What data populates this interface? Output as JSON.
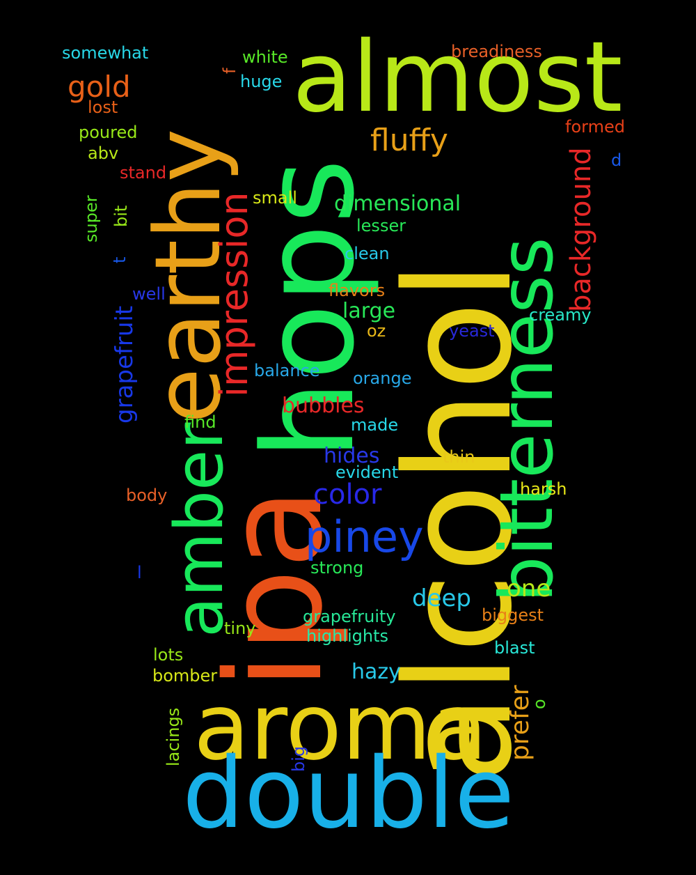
{
  "background": "#000000",
  "words": [
    {
      "text": "alcohol",
      "color": "#e8d016"
    },
    {
      "text": "ipa",
      "color": "#e85018"
    },
    {
      "text": "hops",
      "color": "#18e85a"
    },
    {
      "text": "almost",
      "color": "#b8e818"
    },
    {
      "text": "earthy",
      "color": "#e8a018"
    },
    {
      "text": "aroma",
      "color": "#e8d016"
    },
    {
      "text": "double",
      "color": "#18b0e8"
    },
    {
      "text": "bitterness",
      "color": "#18e85a"
    },
    {
      "text": "amber",
      "color": "#18e85a"
    },
    {
      "text": "piney",
      "color": "#1848e8"
    },
    {
      "text": "impression",
      "color": "#e82828"
    },
    {
      "text": "background",
      "color": "#e82828"
    },
    {
      "text": "fluffy",
      "color": "#e8a018"
    },
    {
      "text": "gold",
      "color": "#e86018"
    },
    {
      "text": "grapefruit",
      "color": "#1838e8"
    },
    {
      "text": "color",
      "color": "#2828e8"
    },
    {
      "text": "dimensional",
      "color": "#28e858"
    },
    {
      "text": "prefer",
      "color": "#e8a018"
    },
    {
      "text": "deep",
      "color": "#28c8e8"
    },
    {
      "text": "one",
      "color": "#b8e818"
    },
    {
      "text": "bubbles",
      "color": "#e82828"
    },
    {
      "text": "hides",
      "color": "#2838e8"
    },
    {
      "text": "large",
      "color": "#28e858"
    },
    {
      "text": "hazy",
      "color": "#28c8e8"
    },
    {
      "text": "breadiness",
      "color": "#e86028"
    },
    {
      "text": "somewhat",
      "color": "#28d8e8"
    },
    {
      "text": "white",
      "color": "#58e828"
    },
    {
      "text": "huge",
      "color": "#28d8e8"
    },
    {
      "text": "lost",
      "color": "#e86018"
    },
    {
      "text": "formed",
      "color": "#e84018"
    },
    {
      "text": "poured",
      "color": "#98e818"
    },
    {
      "text": "abv",
      "color": "#b8e818"
    },
    {
      "text": "stand",
      "color": "#e82828"
    },
    {
      "text": "small",
      "color": "#d8e818"
    },
    {
      "text": "lesser",
      "color": "#28e858"
    },
    {
      "text": "clean",
      "color": "#28c8e8"
    },
    {
      "text": "flavors",
      "color": "#e88018"
    },
    {
      "text": "well",
      "color": "#2838e8"
    },
    {
      "text": "creamy",
      "color": "#28e8c8"
    },
    {
      "text": "yeast",
      "color": "#2828d8"
    },
    {
      "text": "oz",
      "color": "#e8b818"
    },
    {
      "text": "balance",
      "color": "#28a8e8"
    },
    {
      "text": "orange",
      "color": "#28a8e8"
    },
    {
      "text": "find",
      "color": "#58e828"
    },
    {
      "text": "made",
      "color": "#28d8e8"
    },
    {
      "text": "evident",
      "color": "#28d8e8"
    },
    {
      "text": "thin",
      "color": "#e8c818"
    },
    {
      "text": "body",
      "color": "#e86028"
    },
    {
      "text": "harsh",
      "color": "#e8e818"
    },
    {
      "text": "strong",
      "color": "#28e858"
    },
    {
      "text": "grapefruity",
      "color": "#28e898"
    },
    {
      "text": "biggest",
      "color": "#e88018"
    },
    {
      "text": "tiny",
      "color": "#98e818"
    },
    {
      "text": "highlights",
      "color": "#28e8a8"
    },
    {
      "text": "blast",
      "color": "#28e8d8"
    },
    {
      "text": "lots",
      "color": "#98e818"
    },
    {
      "text": "bomber",
      "color": "#d8e818"
    },
    {
      "text": "lacings",
      "color": "#98e818"
    },
    {
      "text": "big",
      "color": "#2838e8"
    },
    {
      "text": "super",
      "color": "#58e828"
    },
    {
      "text": "bit",
      "color": "#98e818"
    },
    {
      "text": "t",
      "color": "#1858e8"
    },
    {
      "text": "d",
      "color": "#1858e8"
    },
    {
      "text": "f",
      "color": "#e86028"
    },
    {
      "text": "l",
      "color": "#1838e8"
    },
    {
      "text": "o",
      "color": "#58e828"
    }
  ]
}
